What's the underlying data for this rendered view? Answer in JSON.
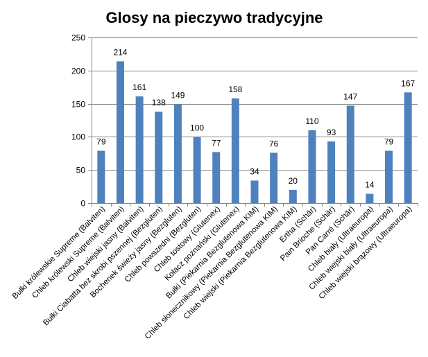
{
  "chart_data": {
    "type": "bar",
    "title": "Glosy na pieczywo tradycyjne",
    "xlabel": "",
    "ylabel": "",
    "ylim": [
      0,
      250
    ],
    "yticks": [
      0,
      50,
      100,
      150,
      200,
      250
    ],
    "grid": true,
    "legend": "none",
    "bar_color": "#4f81bd",
    "grid_color": "#868686",
    "categories": [
      "Bułki królewskie Supreme (Balviten)",
      "Chleb królewski Supreme (Balviten)",
      "Chleb wiejski jasny (Balviten)",
      "Bułki Ciabatta bez skrobi pszennej (Bezgluten)",
      "Bochenek świeży jasny (Bezgluten)",
      "Chleb powszedni (Bezgluten)",
      "Chleb tostowy (Glutenex)",
      "Kołacz poznański (Glutenex)",
      "Bułki (Piekarnia Bezglutenowa KIM)",
      "Chleb słonecznikowy (Piekarnia Bezglutenowa KIM)",
      "Chleb wiejski (Piekarnia Bezglutenowa KIM)",
      "Ertha (Schär)",
      "Pain Brioche (Schär)",
      "Pan Carré (Schär)",
      "Chleb biały (Ultraeuropa)",
      "Chleb wiejski biały (Ultraeuropa)",
      "Chleb wiejski brązowy (Ultraeuropa)"
    ],
    "values": [
      79,
      214,
      161,
      138,
      149,
      100,
      77,
      158,
      34,
      76,
      20,
      110,
      93,
      147,
      14,
      79,
      167
    ]
  }
}
